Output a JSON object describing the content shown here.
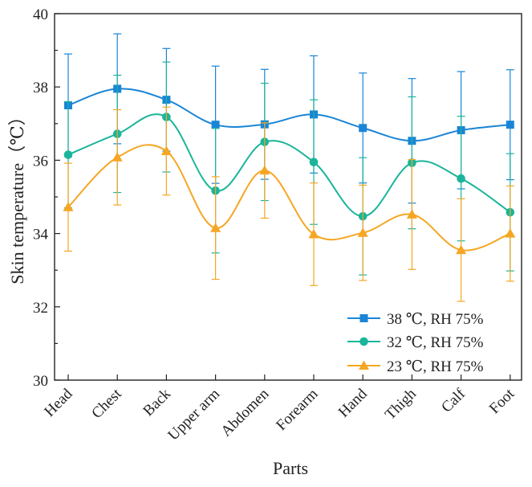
{
  "chart_data": {
    "type": "line",
    "xlabel": "Parts",
    "ylabel": "Skin temperature（℃）",
    "ylim": [
      30,
      40
    ],
    "yticks": [
      "30",
      "32",
      "34",
      "36",
      "38",
      "40"
    ],
    "categories": [
      "Head",
      "Chest",
      "Back",
      "Upper arm",
      "Abdomen",
      "Forearm",
      "Hand",
      "Thigh",
      "Calf",
      "Foot"
    ],
    "legend_position": "bottom-right",
    "grid": false,
    "series": [
      {
        "name": "38 ℃, RH 75%",
        "color": "#1a85d6",
        "marker": "square",
        "values": [
          37.5,
          37.95,
          37.65,
          36.97,
          36.98,
          37.25,
          36.88,
          36.53,
          36.82,
          36.97
        ],
        "errors": [
          1.4,
          1.5,
          1.4,
          1.6,
          1.5,
          1.6,
          1.5,
          1.7,
          1.6,
          1.5
        ]
      },
      {
        "name": "32 ℃, RH 75%",
        "color": "#1ab59a",
        "marker": "circle",
        "values": [
          36.15,
          36.72,
          37.18,
          35.17,
          36.5,
          35.95,
          34.47,
          35.93,
          35.5,
          34.58
        ],
        "errors": [
          1.45,
          1.6,
          1.5,
          1.7,
          1.6,
          1.7,
          1.6,
          1.8,
          1.7,
          1.6
        ]
      },
      {
        "name": "23 ℃, RH 75%",
        "color": "#f5a623",
        "marker": "triangle",
        "values": [
          34.72,
          36.08,
          36.25,
          34.15,
          35.72,
          33.98,
          34.02,
          34.52,
          33.55,
          34.0
        ],
        "errors": [
          1.2,
          1.3,
          1.2,
          1.4,
          1.3,
          1.4,
          1.3,
          1.5,
          1.4,
          1.3
        ]
      }
    ]
  }
}
